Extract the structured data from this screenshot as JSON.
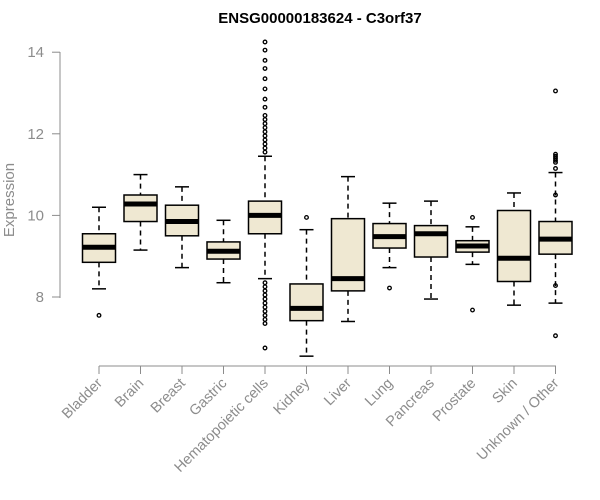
{
  "chart_data": {
    "type": "boxplot",
    "title": "ENSG00000183624 - C3orf37",
    "xlabel": "",
    "ylabel": "Expression",
    "ylim": [
      6.6,
      14.2
    ],
    "yticks": [
      8,
      10,
      12,
      14
    ],
    "categories": [
      "Bladder",
      "Brain",
      "Breast",
      "Gastric",
      "Hematopoietic cells",
      "Kidney",
      "Liver",
      "Lung",
      "Pancreas",
      "Prostate",
      "Skin",
      "Unknown / Other"
    ],
    "boxes": [
      {
        "name": "Bladder",
        "whisker_low": 8.2,
        "q1": 8.85,
        "median": 9.22,
        "q3": 9.55,
        "whisker_high": 10.2,
        "outliers": [
          7.55
        ]
      },
      {
        "name": "Brain",
        "whisker_low": 9.15,
        "q1": 9.85,
        "median": 10.28,
        "q3": 10.5,
        "whisker_high": 11.0,
        "outliers": []
      },
      {
        "name": "Breast",
        "whisker_low": 8.72,
        "q1": 9.5,
        "median": 9.85,
        "q3": 10.25,
        "whisker_high": 10.7,
        "outliers": []
      },
      {
        "name": "Gastric",
        "whisker_low": 8.35,
        "q1": 8.93,
        "median": 9.12,
        "q3": 9.35,
        "whisker_high": 9.88,
        "outliers": []
      },
      {
        "name": "Hematopoietic cells",
        "whisker_low": 8.45,
        "q1": 9.55,
        "median": 10.0,
        "q3": 10.35,
        "whisker_high": 11.45,
        "outliers": [
          14.25,
          14.05,
          13.8,
          13.6,
          13.35,
          13.1,
          12.85,
          12.65,
          12.45,
          12.35,
          12.25,
          12.15,
          12.05,
          11.95,
          11.85,
          11.75,
          11.65,
          11.55,
          8.35,
          8.25,
          8.15,
          8.05,
          7.95,
          7.85,
          7.75,
          7.65,
          7.55,
          7.45,
          7.35,
          6.75
        ]
      },
      {
        "name": "Kidney",
        "whisker_low": 6.55,
        "q1": 7.42,
        "median": 7.72,
        "q3": 8.32,
        "whisker_high": 9.65,
        "outliers": [
          9.95
        ]
      },
      {
        "name": "Liver",
        "whisker_low": 7.4,
        "q1": 8.15,
        "median": 8.45,
        "q3": 9.92,
        "whisker_high": 10.95,
        "outliers": []
      },
      {
        "name": "Lung",
        "whisker_low": 8.72,
        "q1": 9.2,
        "median": 9.48,
        "q3": 9.8,
        "whisker_high": 10.3,
        "outliers": [
          8.22
        ]
      },
      {
        "name": "Pancreas",
        "whisker_low": 7.95,
        "q1": 8.98,
        "median": 9.55,
        "q3": 9.75,
        "whisker_high": 10.35,
        "outliers": []
      },
      {
        "name": "Prostate",
        "whisker_low": 8.8,
        "q1": 9.1,
        "median": 9.25,
        "q3": 9.38,
        "whisker_high": 9.72,
        "outliers": [
          9.95,
          7.68
        ]
      },
      {
        "name": "Skin",
        "whisker_low": 7.8,
        "q1": 8.38,
        "median": 8.95,
        "q3": 10.12,
        "whisker_high": 10.55,
        "outliers": []
      },
      {
        "name": "Unknown / Other",
        "whisker_low": 7.85,
        "q1": 9.05,
        "median": 9.42,
        "q3": 9.85,
        "whisker_high": 11.05,
        "outliers": [
          13.05,
          11.5,
          11.45,
          11.4,
          11.35,
          11.3,
          11.15,
          10.5,
          8.28,
          7.05
        ]
      }
    ],
    "colors": {
      "box_fill": "#efe8d2",
      "axis": "#8c8c8c",
      "title": "#000000"
    }
  }
}
